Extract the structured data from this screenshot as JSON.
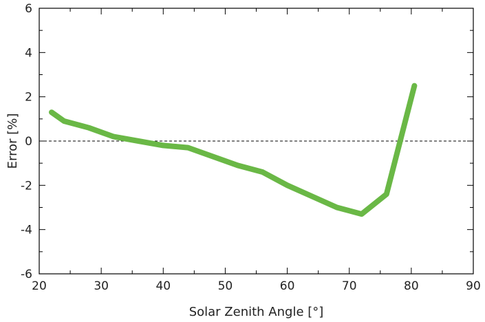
{
  "chart_data": {
    "type": "line",
    "title": "",
    "xlabel": "Solar Zenith Angle [°]",
    "ylabel": "Error [%]",
    "xlim": [
      20,
      90
    ],
    "ylim": [
      -6,
      6
    ],
    "xticks": [
      20,
      30,
      40,
      50,
      60,
      70,
      80,
      90
    ],
    "yticks": [
      -6,
      -4,
      -2,
      0,
      2,
      4,
      6
    ],
    "grid": false,
    "reference_line": {
      "y": 0,
      "style": "dashed",
      "color": "#000000"
    },
    "series": [
      {
        "color": "#6ab846",
        "x": [
          22,
          24,
          28,
          32,
          36,
          40,
          44,
          48,
          52,
          56,
          60,
          64,
          68,
          72,
          76,
          80.5
        ],
        "y": [
          1.3,
          0.9,
          0.6,
          0.2,
          0.0,
          -0.2,
          -0.3,
          -0.7,
          -1.1,
          -1.4,
          -2.0,
          -2.5,
          -3.0,
          -3.3,
          -2.4,
          2.5
        ]
      }
    ]
  }
}
